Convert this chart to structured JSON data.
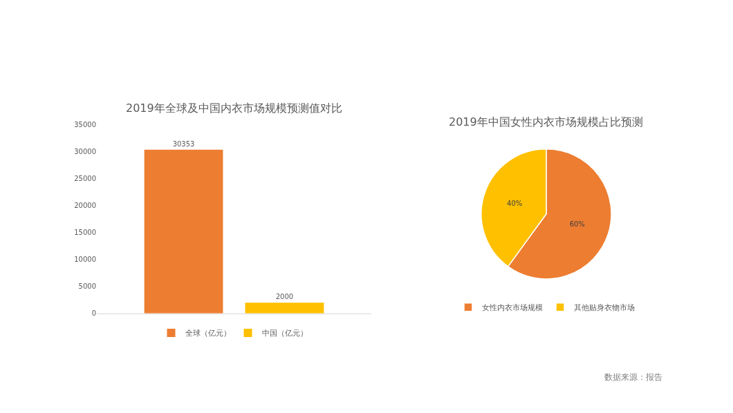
{
  "chart_data": [
    {
      "type": "bar",
      "title": "2019年全球及中国内衣市场规模预测值对比",
      "categories": [
        null
      ],
      "series": [
        {
          "name": "全球（亿元）",
          "color": "#ed7d31",
          "values": [
            30353
          ]
        },
        {
          "name": "中国（亿元）",
          "color": "#ffc000",
          "values": [
            2000
          ]
        }
      ],
      "ylim": [
        0,
        35000
      ],
      "yticks": [
        0,
        5000,
        10000,
        15000,
        20000,
        25000,
        30000,
        35000
      ],
      "grid": false,
      "legend": "bottom",
      "data_labels": true
    },
    {
      "type": "pie",
      "title": "2019年中国女性内衣市场规模占比预测",
      "categories": [
        "女性内衣市场规模",
        "其他贴身衣物市场"
      ],
      "values": [
        60,
        40
      ],
      "colors": [
        "#ed7d31",
        "#ffc000"
      ],
      "value_labels": [
        "60%",
        "40%"
      ],
      "legend": "bottom",
      "annotations": [
        "数据来源：报告"
      ]
    }
  ]
}
